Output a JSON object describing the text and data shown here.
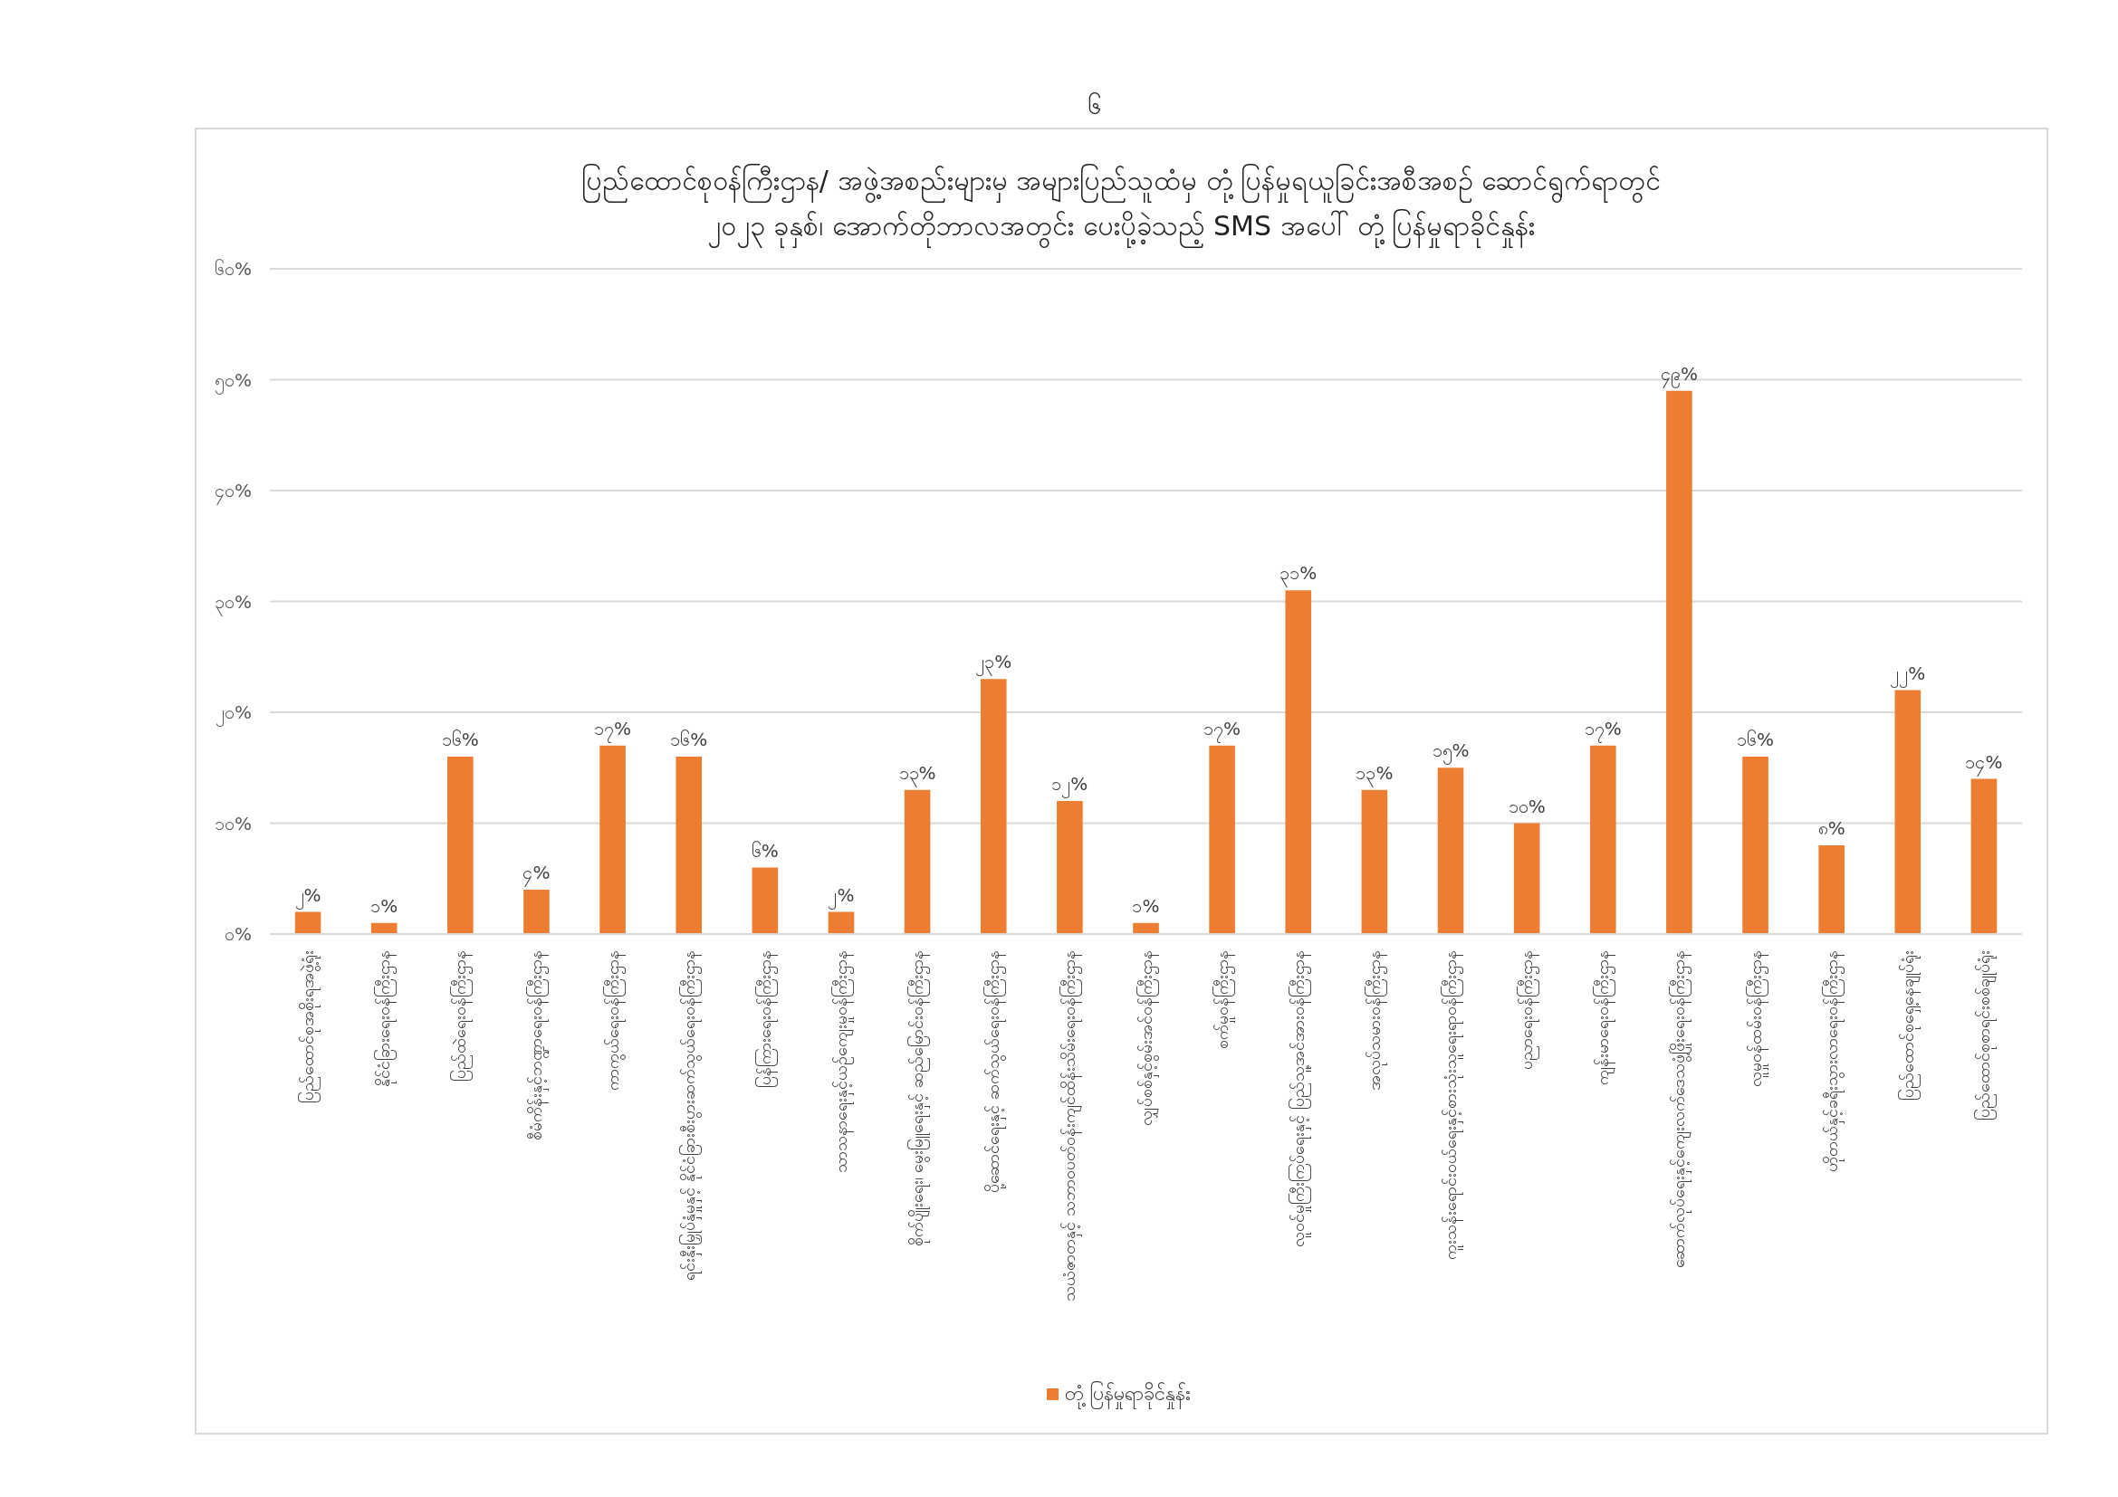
{
  "chart_data": {
    "type": "bar",
    "title": "ပြည်ထောင်စုဝန်ကြီးဌာန/ အဖွဲ့အစည်းများမှ အများပြည်သူထံမှ တုံ့ပြန်မှုရယူခြင်းအစီအစဉ် ဆောင်ရွက်ရာတွင်\n၂၀၂၃ ခုနှစ်၊ အောက်တိုဘာလအတွင်း ပေးပို့ခဲ့သည့် SMS အပေါ် တုံ့ပြန်မှုရာခိုင်နှုန်း",
    "annotations": [
      "၆"
    ],
    "categories": [
      "ပြည်ထောင်စုအစိုးရအဖွဲ့ရုံး",
      "နိုင်ငံခြားရေးဝန်ကြီးဌာန",
      "ပြည်ထဲရေးဝန်ကြီးဌာန",
      "စီမံကိန်းနှင့်ဘဏ္ဍာရေးဝန်ကြီးဌာန",
      "ကာကွယ်ရေးဝန်ကြီးဌာန",
      "ရင်းနှီးမြှုပ်နှံမှုနှင့် နိုင်ငံခြားစီးပွားဆက်သွယ်ရေးဝန်ကြီးဌာန",
      "ပြန်ကြားရေးဝန်ကြီးဌာန",
      "သာသနာရေးနှင့်ယဉ်ကျေးမှုဝန်ကြီးဌာန",
      "စိုက်ပျိုးရေး၊ မွေးမြူရေးနှင့် ဆည်မြောင်းဝန်ကြီးဌာန",
      "ပို့ဆောင်ရေးနှင့် ဆက်သွယ်ရေးဝန်ကြီးဌာန",
      "သယံဇာတနှင့် သဘာဝပတ်ဝန်းကျင်ထိန်းသိမ်းရေးဝန်ကြီးဌာန",
      "လျှပ်စစ်နှင့်စွမ်းအင်ဝန်ကြီးဌာန",
      "စက်မှုဝန်ကြီးဌာန",
      "လူဝင်မှုကြီးကြပ်ရေးနှင့် ပြည်သူ့အင်အားဝန်ကြီးဌာန",
      "အလုပ်သမားဝန်ကြီးဌာန",
      "ကူးသန်းရောင်းဝယ်ရေးနှင့်စားသုံးသူရေးရာဝန်ကြီးဌာန",
      "ပညာရေးဝန်ကြီးဌာန",
      "ကျန်းမာရေးဝန်ကြီးဌာန",
      "ဆောက်လုပ်ရေးနှင့်ကျေးလက်ဒေသဖွံ့ဖြိုးရေးဝန်ကြီးဌာန",
      "လူမှုဝန်ထမ်းဝန်ကြီးဌာန",
      "ဟိုတယ်နှင့်ခရီးသွားလာရေးဝန်ကြီးဌာန",
      "ပြည်ထောင်စုရှေ့နေချုပ်ရုံး",
      "ပြည်ထောင်စုစာရင်းစစ်ချုပ်ရုံး"
    ],
    "series": [
      {
        "name": "တုံ့ပြန်မှုရာခိုင်နှုန်း",
        "color": "#ed7d31",
        "values": [
          2,
          1,
          16,
          4,
          17,
          16,
          6,
          2,
          13,
          23,
          12,
          1,
          17,
          31,
          13,
          15,
          10,
          17,
          49,
          16,
          8,
          22,
          14
        ],
        "value_labels": [
          "၂%",
          "၁%",
          "၁၆%",
          "၄%",
          "၁၇%",
          "၁၆%",
          "၆%",
          "၂%",
          "၁၃%",
          "၂၃%",
          "၁၂%",
          "၁%",
          "၁၇%",
          "၃၁%",
          "၁၃%",
          "၁၅%",
          "၁၀%",
          "၁၇%",
          "၄၉%",
          "၁၆%",
          "၈%",
          "၂၂%",
          "၁၄%"
        ]
      }
    ],
    "ylim": [
      0,
      60
    ],
    "yticks": [
      {
        "value": 0,
        "label": "၀%"
      },
      {
        "value": 10,
        "label": "၁၀%"
      },
      {
        "value": 20,
        "label": "၂၀%"
      },
      {
        "value": 30,
        "label": "၃၀%"
      },
      {
        "value": 40,
        "label": "၄၀%"
      },
      {
        "value": 50,
        "label": "၅၀%"
      },
      {
        "value": 60,
        "label": "၆၀%"
      }
    ],
    "grid": "y",
    "legend": "bottom"
  }
}
